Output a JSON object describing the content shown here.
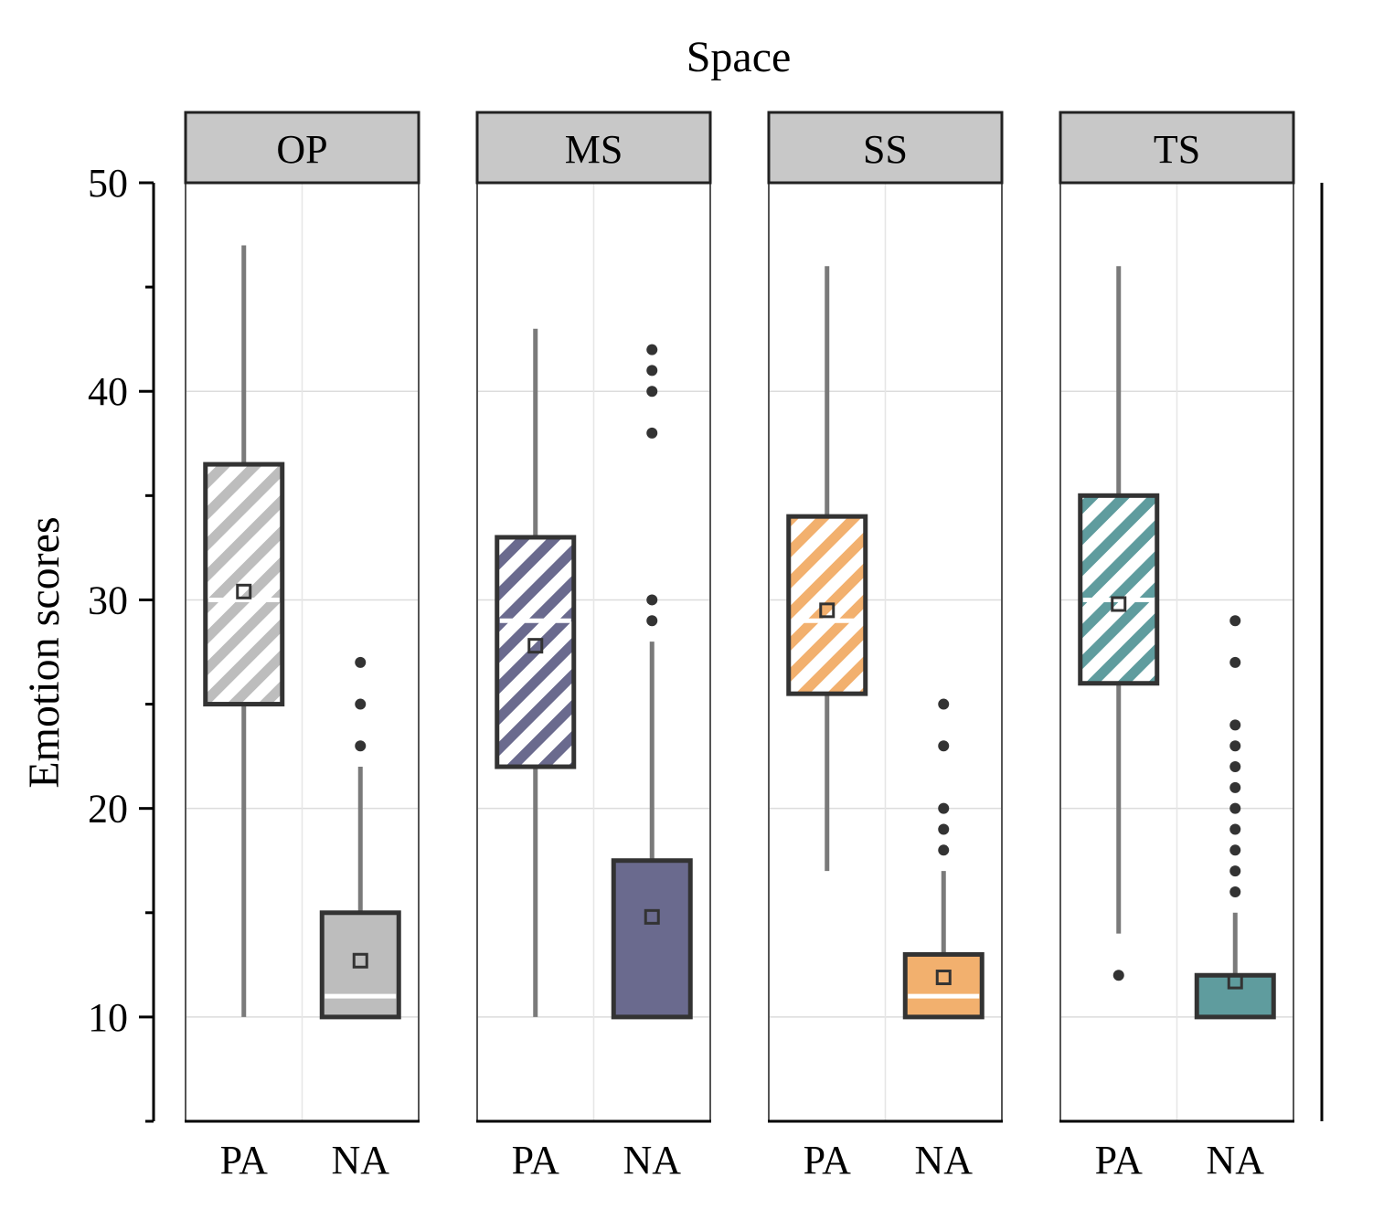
{
  "chart_data": {
    "type": "box",
    "title": "Space",
    "ylabel": "Emotion scores",
    "xlabel": "",
    "ylim": [
      5,
      50
    ],
    "y_ticks": [
      "10",
      "20",
      "30",
      "40",
      "50"
    ],
    "grid": true,
    "colors": {
      "OP": "#bdbdbd",
      "MS": "#6a6a8e",
      "SS": "#f2b06e",
      "TS": "#5f9c9e",
      "outline": "#333333",
      "whisker": "#7a7a7a",
      "strip": "#c8c8c8",
      "median": "#ffffff"
    },
    "panels": [
      {
        "label": "OP",
        "color_key": "OP",
        "boxes": [
          {
            "category": "PA",
            "pattern": "hatch",
            "whisker_low": 10,
            "q1": 25,
            "median": 30,
            "q3": 36.5,
            "whisker_high": 47,
            "mean": 30.4,
            "outliers": []
          },
          {
            "category": "NA",
            "pattern": "solid",
            "whisker_low": 10,
            "q1": 10,
            "median": 11,
            "q3": 15,
            "whisker_high": 22,
            "mean": 12.7,
            "outliers": [
              23,
              25,
              27
            ]
          }
        ]
      },
      {
        "label": "MS",
        "color_key": "MS",
        "boxes": [
          {
            "category": "PA",
            "pattern": "hatch",
            "whisker_low": 10,
            "q1": 22,
            "median": 29,
            "q3": 33,
            "whisker_high": 43,
            "mean": 27.8,
            "outliers": []
          },
          {
            "category": "NA",
            "pattern": "solid",
            "whisker_low": 10,
            "q1": 10,
            "median": 10,
            "q3": 17.5,
            "whisker_high": 28,
            "mean": 14.8,
            "outliers": [
              29,
              30,
              38,
              40,
              41,
              42
            ]
          }
        ]
      },
      {
        "label": "SS",
        "color_key": "SS",
        "boxes": [
          {
            "category": "PA",
            "pattern": "hatch",
            "whisker_low": 17,
            "q1": 25.5,
            "median": 29,
            "q3": 34,
            "whisker_high": 46,
            "mean": 29.5,
            "outliers": []
          },
          {
            "category": "NA",
            "pattern": "solid",
            "whisker_low": 10,
            "q1": 10,
            "median": 11,
            "q3": 13,
            "whisker_high": 17,
            "mean": 11.9,
            "outliers": [
              18,
              19,
              20,
              23,
              25
            ]
          }
        ]
      },
      {
        "label": "TS",
        "color_key": "TS",
        "boxes": [
          {
            "category": "PA",
            "pattern": "hatch",
            "whisker_low": 14,
            "q1": 26,
            "median": 30,
            "q3": 35,
            "whisker_high": 46,
            "mean": 29.8,
            "outliers": [
              12
            ]
          },
          {
            "category": "NA",
            "pattern": "solid",
            "whisker_low": 10,
            "q1": 10,
            "median": 10,
            "q3": 12,
            "whisker_high": 15,
            "mean": 11.7,
            "outliers": [
              16,
              17,
              18,
              19,
              20,
              21,
              22,
              23,
              24,
              27,
              29
            ]
          }
        ]
      }
    ]
  }
}
